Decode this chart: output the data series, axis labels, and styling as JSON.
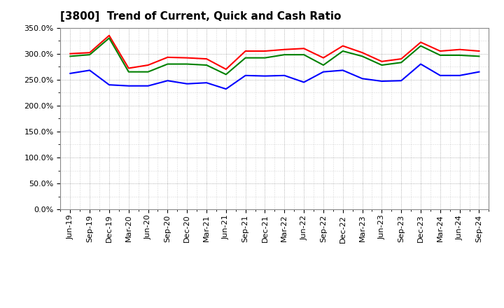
{
  "title": "[3800]  Trend of Current, Quick and Cash Ratio",
  "labels": [
    "Jun-19",
    "Sep-19",
    "Dec-19",
    "Mar-20",
    "Jun-20",
    "Sep-20",
    "Dec-20",
    "Mar-21",
    "Jun-21",
    "Sep-21",
    "Dec-21",
    "Mar-22",
    "Jun-22",
    "Sep-22",
    "Dec-22",
    "Mar-23",
    "Jun-23",
    "Sep-23",
    "Dec-23",
    "Mar-24",
    "Jun-24",
    "Sep-24"
  ],
  "current_ratio": [
    300,
    302,
    335,
    272,
    278,
    293,
    292,
    290,
    270,
    305,
    305,
    308,
    310,
    292,
    315,
    302,
    285,
    290,
    322,
    305,
    308,
    305
  ],
  "quick_ratio": [
    295,
    298,
    330,
    265,
    265,
    280,
    280,
    278,
    260,
    292,
    292,
    298,
    298,
    278,
    305,
    295,
    278,
    283,
    315,
    297,
    297,
    295
  ],
  "cash_ratio": [
    262,
    268,
    240,
    238,
    238,
    248,
    242,
    244,
    232,
    258,
    257,
    258,
    245,
    265,
    268,
    252,
    247,
    248,
    280,
    258,
    258,
    265
  ],
  "current_color": "#ff0000",
  "quick_color": "#008000",
  "cash_color": "#0000ff",
  "ylim": [
    0,
    350
  ],
  "yticks": [
    0.0,
    50.0,
    100.0,
    150.0,
    200.0,
    250.0,
    300.0,
    350.0
  ],
  "background_color": "#ffffff",
  "grid_color": "#999999",
  "line_width": 1.5,
  "title_fontsize": 11,
  "tick_fontsize": 8,
  "legend_fontsize": 9
}
